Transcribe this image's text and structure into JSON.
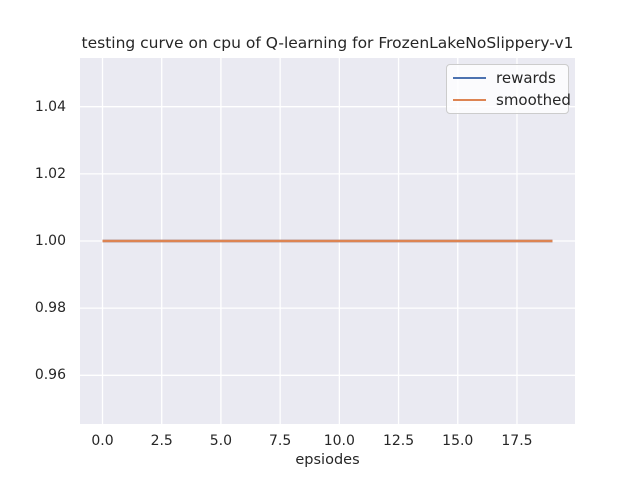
{
  "chart_data": {
    "type": "line",
    "title": "testing curve on cpu of Q-learning for FrozenLakeNoSlippery-v1",
    "xlabel": "epsiodes",
    "ylabel": "",
    "xlim": [
      -0.95,
      19.95
    ],
    "ylim": [
      0.9455,
      1.0545
    ],
    "x_ticks": [
      0.0,
      2.5,
      5.0,
      7.5,
      10.0,
      12.5,
      15.0,
      17.5
    ],
    "x_tick_labels": [
      "0.0",
      "2.5",
      "5.0",
      "7.5",
      "10.0",
      "12.5",
      "15.0",
      "17.5"
    ],
    "y_ticks": [
      0.96,
      0.98,
      1.0,
      1.02,
      1.04
    ],
    "y_tick_labels": [
      "0.96",
      "0.98",
      "1.00",
      "1.02",
      "1.04"
    ],
    "grid": true,
    "legend_position": "upper right",
    "series": [
      {
        "name": "rewards",
        "color": "#4c72b0",
        "x": [
          0,
          1,
          2,
          3,
          4,
          5,
          6,
          7,
          8,
          9,
          10,
          11,
          12,
          13,
          14,
          15,
          16,
          17,
          18,
          19
        ],
        "y": [
          1.0,
          1.0,
          1.0,
          1.0,
          1.0,
          1.0,
          1.0,
          1.0,
          1.0,
          1.0,
          1.0,
          1.0,
          1.0,
          1.0,
          1.0,
          1.0,
          1.0,
          1.0,
          1.0,
          1.0
        ]
      },
      {
        "name": "smoothed",
        "color": "#dd8452",
        "x": [
          0,
          1,
          2,
          3,
          4,
          5,
          6,
          7,
          8,
          9,
          10,
          11,
          12,
          13,
          14,
          15,
          16,
          17,
          18,
          19
        ],
        "y": [
          1.0,
          1.0,
          1.0,
          1.0,
          1.0,
          1.0,
          1.0,
          1.0,
          1.0,
          1.0,
          1.0,
          1.0,
          1.0,
          1.0,
          1.0,
          1.0,
          1.0,
          1.0,
          1.0,
          1.0
        ]
      }
    ],
    "colors": {
      "plot_background": "#eaeaf2",
      "grid_line": "#ffffff",
      "text": "#262626",
      "legend_border": "#cccccc"
    }
  }
}
